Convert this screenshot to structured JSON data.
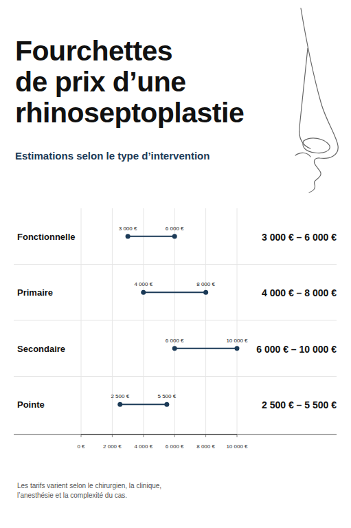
{
  "chart_data": {
    "type": "range",
    "orientation": "horizontal",
    "title": "Fourchettes de prix d’une rhinoseptoplastie",
    "subtitle": "Estimations selon le type d’intervention",
    "categories": [
      "Fonctionnelle",
      "Primaire",
      "Secondaire",
      "Pointe"
    ],
    "values": [
      [
        3000,
        6000
      ],
      [
        4000,
        8000
      ],
      [
        6000,
        10000
      ],
      [
        2500,
        5500
      ]
    ],
    "value_labels": [
      [
        "3 000 €",
        "6 000 €"
      ],
      [
        "4 000 €",
        "8 000 €"
      ],
      [
        "6 000 €",
        "10 000 €"
      ],
      [
        "2 500 €",
        "5 500 €"
      ]
    ],
    "range_labels": [
      "3 000 € – 6 000 €",
      "4 000 € – 8 000 €",
      "6 000 € – 10 000 €",
      "2 500 € – 5 500 €"
    ],
    "xlim": [
      0,
      10000
    ],
    "xticks": [
      {
        "value": 0,
        "label": "0 €"
      },
      {
        "value": 2000,
        "label": "2 000 €"
      },
      {
        "value": 4000,
        "label": "4 000 €"
      },
      {
        "value": 6000,
        "label": "6 000 €"
      },
      {
        "value": 8000,
        "label": "8 000 €"
      },
      {
        "value": 10000,
        "label": "10 000 €"
      }
    ],
    "grid": true,
    "data_labels": true,
    "color": "#1b3a57",
    "annotation": "Les tarifs varient selon le chirurgien, la clinique, l’anesthésie et la complexité du cas."
  }
}
